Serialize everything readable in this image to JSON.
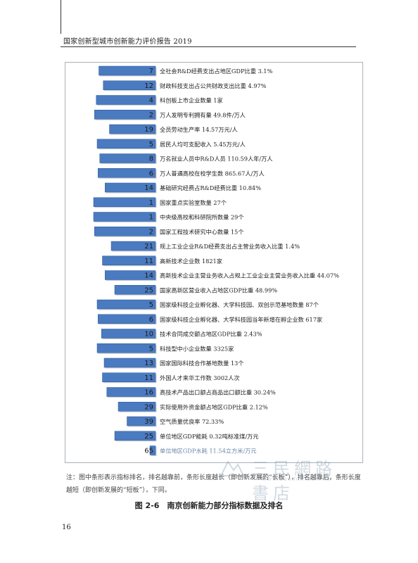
{
  "header": {
    "title": "国家创新型城市创新能力评价报告 2019"
  },
  "chart_data": {
    "type": "bar",
    "orientation": "horizontal",
    "value_meaning": "rank",
    "colors": {
      "bar": "#4a7ac0",
      "bar_dark": "#2f5a9a"
    },
    "rows": [
      {
        "rank": 7,
        "label": "全社会R&D经费支出占地区GDP比重 3.1%"
      },
      {
        "rank": 12,
        "label": "财政科技支出占公共财政支出比重 4.97%"
      },
      {
        "rank": 4,
        "label": "科创板上市企业数量 1家"
      },
      {
        "rank": 2,
        "label": "万人发明专利拥有量 49.8件/万人"
      },
      {
        "rank": 19,
        "label": "全员劳动生产率 14.57万元/人"
      },
      {
        "rank": 5,
        "label": "居民人均可支配收入 5.45万元/人"
      },
      {
        "rank": 8,
        "label": "万名就业人员中R&D人员 110.59人年/万人"
      },
      {
        "rank": 6,
        "label": "万人普通高校在校学生数 865.67人/万人"
      },
      {
        "rank": 14,
        "label": "基础研究经费占R&D经费比重 10.84%"
      },
      {
        "rank": 1,
        "label": "国家重点实验室数量 27个"
      },
      {
        "rank": 1,
        "label": "中央级高校和科研院所数量 29个"
      },
      {
        "rank": 2,
        "label": "国家工程技术研究中心数量 15个"
      },
      {
        "rank": 21,
        "label": "规上工业企业R&D经费支出占主营业务收入比重 1.4%"
      },
      {
        "rank": 11,
        "label": "高新技术企业数 1821家"
      },
      {
        "rank": 14,
        "label": "高新技术企业主营业务收入占规上工业企业主营业务收入比重 44.07%"
      },
      {
        "rank": 25,
        "label": "国家高新区营业收入占地区GDP比重 48.99%"
      },
      {
        "rank": 5,
        "label": "国家级科技企业孵化器、大学科技园、双创示范基地数量 87个"
      },
      {
        "rank": 6,
        "label": "国家级科技企业孵化器、大学科技园当年新增在孵企业数 617家"
      },
      {
        "rank": 10,
        "label": "技术合同成交额占地区GDP比重 2.43%"
      },
      {
        "rank": 5,
        "label": "科技型中小企业数量 3325家"
      },
      {
        "rank": 13,
        "label": "国家国际科技合作基地数量 13个"
      },
      {
        "rank": 11,
        "label": "外国人才来华工作数 3002人次"
      },
      {
        "rank": 16,
        "label": "高技术产品出口额占商品出口额比重 30.24%"
      },
      {
        "rank": 29,
        "label": "实际使用外资金额占地区GDP比重 2.12%"
      },
      {
        "rank": 39,
        "label": "空气质量优良率 72.33%"
      },
      {
        "rank": 25,
        "label": "单位地区GDP能耗 0.32吨标准煤/万元"
      },
      {
        "rank": 65,
        "label": "单位地区GDP水耗 11.54立方米/万元"
      }
    ]
  },
  "note": "注：图中条形表示指标排名，排名越靠前，条形长度越长（即创新发展的“长板”），排名越靠后，条形长度越短（即创新发展的“短板”），下同。",
  "caption": "图 2-6　南京创新能力部分指标数据及排名",
  "page_number": "16",
  "watermark": {
    "text": "三民網路書店",
    "url": "www.sanmin.com.tw"
  }
}
